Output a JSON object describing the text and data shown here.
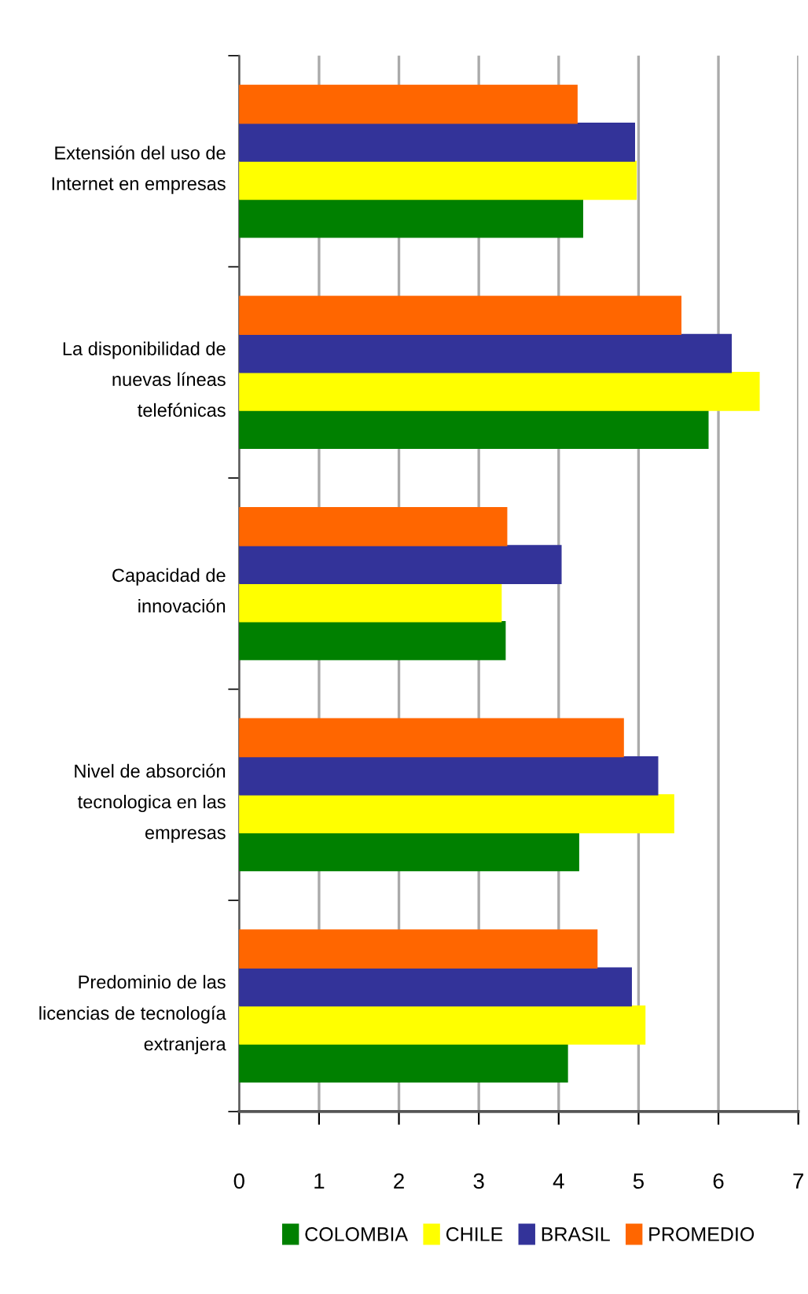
{
  "chart_data": {
    "type": "bar",
    "orientation": "horizontal",
    "categories": [
      "Extensión del uso de\nInternet en empresas",
      "La disponibilidad de\nnuevas líneas\ntelefónicas",
      "Capacidad de\ninnovación",
      "Nivel de absorción\ntecnologica en las\nempresas",
      "Predominio de las\nlicencias de tecnología\nextranjera"
    ],
    "series": [
      {
        "name": "COLOMBIA",
        "color": "#008000",
        "values": [
          4.3,
          5.87,
          3.33,
          4.25,
          4.11
        ]
      },
      {
        "name": "CHILE",
        "color": "#ffff00",
        "values": [
          4.97,
          6.51,
          3.28,
          5.44,
          5.08
        ]
      },
      {
        "name": "BRASIL",
        "color": "#333399",
        "values": [
          4.95,
          6.16,
          4.03,
          5.24,
          4.91
        ]
      },
      {
        "name": "PROMEDIO",
        "color": "#ff6600",
        "values": [
          4.23,
          5.53,
          3.35,
          4.81,
          4.48
        ]
      }
    ],
    "xlim": [
      0,
      7
    ],
    "xticks": [
      0,
      1,
      2,
      3,
      4,
      5,
      6,
      7
    ],
    "grid": "x",
    "legend": "bottom"
  }
}
